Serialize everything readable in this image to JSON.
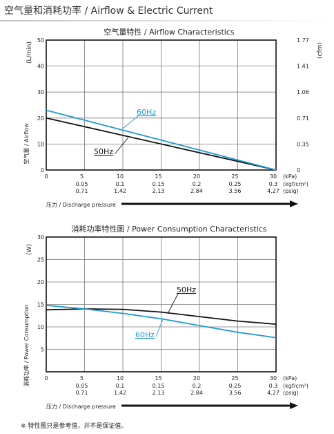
{
  "page": {
    "title": "空气量和消耗功率 / Airflow & Electric Current",
    "footnote": "※ 特性图只是参考值，并不是保证值。"
  },
  "x_axis": {
    "ticks": [
      0,
      5,
      10,
      15,
      20,
      25,
      30
    ],
    "tick_labels": [
      "0",
      "5",
      "10",
      "15",
      "20",
      "25",
      "30"
    ],
    "row2": [
      "",
      "0.05",
      "0.1",
      "0.15",
      "0.2",
      "0.25",
      "0.3"
    ],
    "row3": [
      "",
      "0.71",
      "1.42",
      "2.13",
      "2.84",
      "3.56",
      "4.27"
    ],
    "unit1": "(kPa)",
    "unit2": "(kgf/cm²)",
    "unit3": "(psig)",
    "label": "压力 / Discharge pressure"
  },
  "chart_data": [
    {
      "type": "line",
      "title": "空气量特性 / Airflow Characteristics",
      "ylabel_left_unit": "(L/min)",
      "ylabel_left": "空气量 / Airflow",
      "ylabel_right_unit": "(cfm)",
      "xlim": [
        0,
        30
      ],
      "ylim": [
        0,
        50
      ],
      "yticks": [
        0,
        10,
        20,
        30,
        40,
        50
      ],
      "ytick_labels": [
        "0",
        "10",
        "20",
        "30",
        "40",
        "50"
      ],
      "ytick_labels_right": [
        "0",
        "0.35",
        "0.71",
        "1.06",
        "1.41",
        "1.77"
      ],
      "grid": true,
      "series": [
        {
          "name": "50Hz",
          "color": "#111111",
          "x": [
            0,
            30
          ],
          "y": [
            20,
            0
          ]
        },
        {
          "name": "60Hz",
          "color": "#1e9ad6",
          "x": [
            0,
            30
          ],
          "y": [
            23,
            0
          ]
        }
      ]
    },
    {
      "type": "line",
      "title": "消耗功率特性图 / Power Consumption Characteristics",
      "ylabel_left_unit": "(W)",
      "ylabel_left": "消耗功率 / Power Consumption",
      "xlim": [
        0,
        30
      ],
      "ylim": [
        0,
        30
      ],
      "yticks": [
        0,
        5,
        10,
        15,
        20,
        25,
        30
      ],
      "ytick_labels": [
        "",
        "5",
        "10",
        "15",
        "20",
        "25",
        "30"
      ],
      "grid": true,
      "series": [
        {
          "name": "50Hz",
          "color": "#111111",
          "x": [
            0,
            5,
            10,
            15,
            20,
            25,
            30
          ],
          "y": [
            13.8,
            14.0,
            13.9,
            13.3,
            12.3,
            11.3,
            10.6
          ]
        },
        {
          "name": "60Hz",
          "color": "#1e9ad6",
          "x": [
            0,
            5,
            10,
            15,
            20,
            25,
            30
          ],
          "y": [
            14.8,
            14.0,
            13.0,
            11.8,
            10.3,
            8.8,
            7.6
          ]
        }
      ]
    }
  ]
}
